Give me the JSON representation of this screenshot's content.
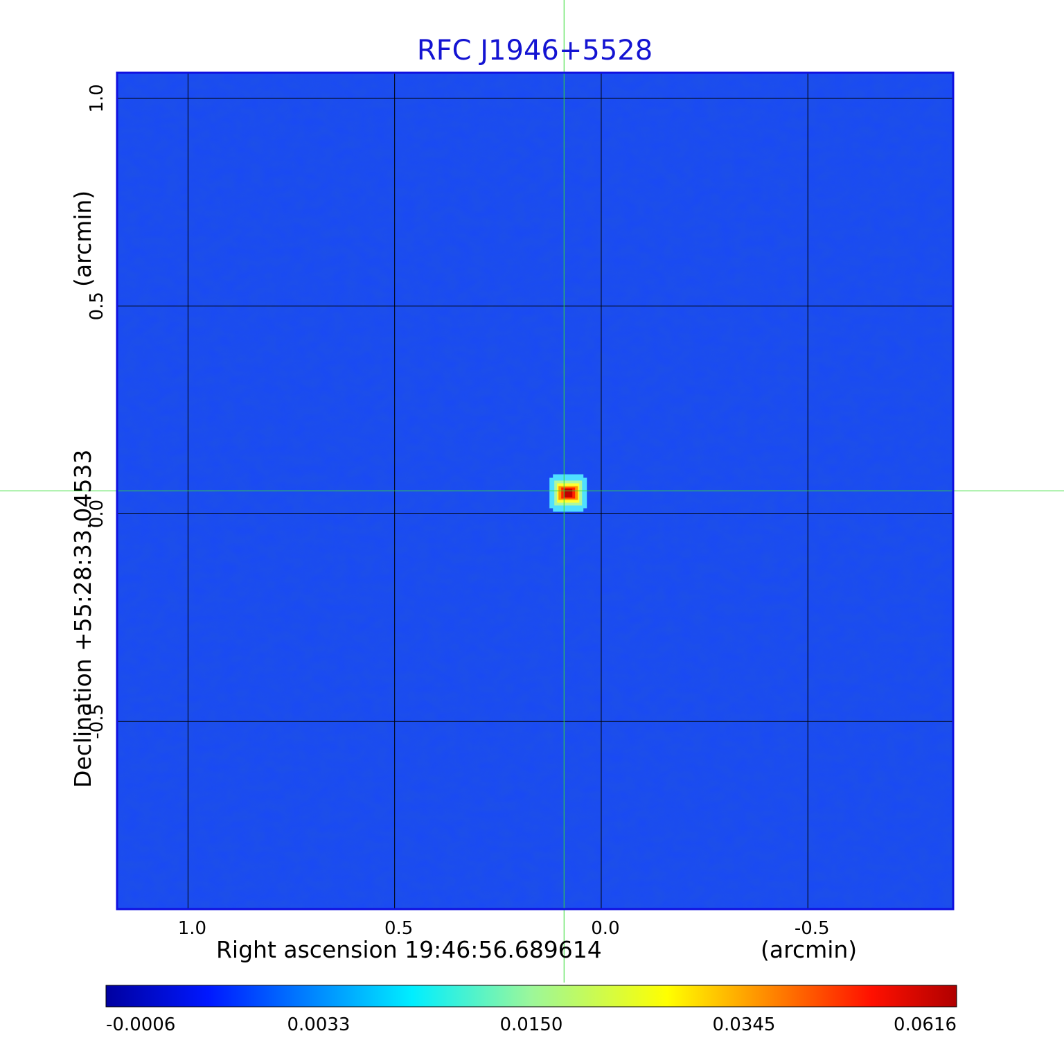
{
  "chart_data": {
    "type": "heatmap",
    "title": "RFC J1946+5528",
    "xlabel": "Right ascension  19:46:56.689614",
    "xunit": "(arcmin)",
    "ylabel": "Declination  +55:28:33.04533",
    "yunit": "(arcmin)",
    "xlim": [
      1.17,
      -0.85
    ],
    "ylim": [
      -0.95,
      1.06
    ],
    "x_ticks": [
      1.0,
      0.5,
      0.0,
      -0.5
    ],
    "x_tick_labels": [
      "1.0",
      "0.5",
      "0.0",
      "-0.5"
    ],
    "y_ticks": [
      1.0,
      0.5,
      0.0,
      -0.5
    ],
    "y_tick_labels": [
      "1.0",
      "0.5",
      "0.0",
      "-0.5"
    ],
    "grid": true,
    "crosshair": {
      "x": 0.09,
      "y": 0.055
    },
    "source": {
      "x": 0.08,
      "y": 0.05,
      "peak": 0.0616
    },
    "colormap": "jet",
    "colorbar": {
      "ticks": [
        "-0.0006",
        "0.0033",
        "0.0150",
        "0.0345",
        "0.0616"
      ],
      "min": -0.0006,
      "max": 0.0616
    },
    "colors": {
      "title": "#1414d2",
      "frame": "#1010e0",
      "grid": "#000000",
      "crosshair": "#33dd33",
      "background_field": "#1848f5"
    }
  }
}
